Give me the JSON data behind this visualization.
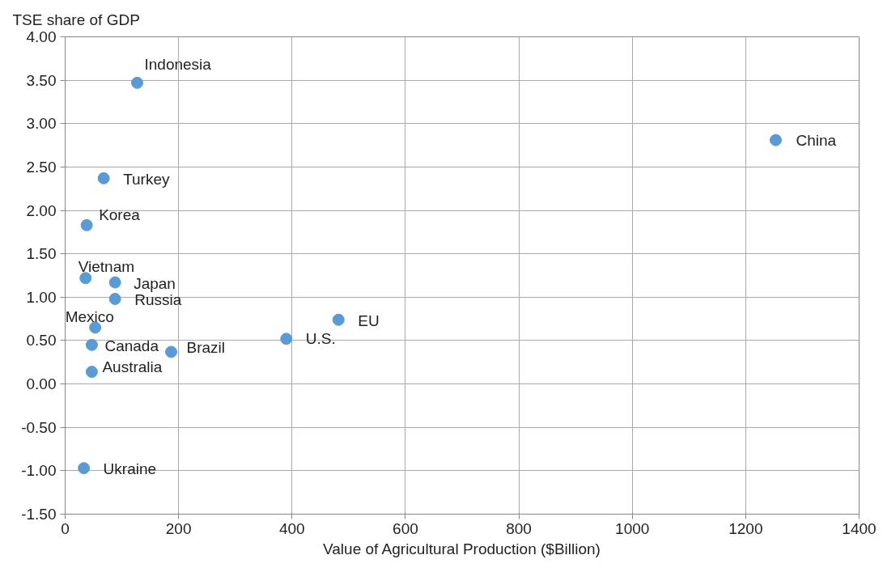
{
  "chart_data": {
    "type": "scatter",
    "xlabel": "Value of Agricultural Production ($Billion)",
    "ylabel": "TSE share of GDP",
    "series": [
      {
        "color": "#5b9bd5",
        "x": [
          127,
          1253,
          68,
          38,
          36,
          88,
          88,
          53,
          47,
          187,
          47,
          33,
          390,
          482
        ],
        "values": [
          3.47,
          2.81,
          2.37,
          1.83,
          1.22,
          1.17,
          0.98,
          0.65,
          0.45,
          0.37,
          0.14,
          -0.97,
          0.52,
          0.74
        ]
      }
    ],
    "annotations": [
      {
        "text": "Indonesia",
        "x": 127,
        "y": 3.47
      },
      {
        "text": "China",
        "x": 1253,
        "y": 2.81
      },
      {
        "text": "Turkey",
        "x": 68,
        "y": 2.37
      },
      {
        "text": "Korea",
        "x": 38,
        "y": 1.83
      },
      {
        "text": "Vietnam",
        "x": 36,
        "y": 1.22
      },
      {
        "text": "Japan",
        "x": 88,
        "y": 1.17
      },
      {
        "text": "Russia",
        "x": 88,
        "y": 0.98
      },
      {
        "text": "Mexico",
        "x": 53,
        "y": 0.65
      },
      {
        "text": "Canada",
        "x": 47,
        "y": 0.45
      },
      {
        "text": "Brazil",
        "x": 187,
        "y": 0.37
      },
      {
        "text": "Australia",
        "x": 47,
        "y": 0.14
      },
      {
        "text": "Ukraine",
        "x": 33,
        "y": -0.97
      },
      {
        "text": "U.S.",
        "x": 390,
        "y": 0.52
      },
      {
        "text": "EU",
        "x": 482,
        "y": 0.74
      }
    ],
    "xlim": [
      0,
      1400
    ],
    "xticks": [
      0,
      200,
      400,
      600,
      800,
      1000,
      1200,
      1400
    ],
    "ylim": [
      -1.5,
      4.0
    ],
    "yticks": [
      {
        "value": -1.5,
        "label": "-1.50"
      },
      {
        "value": -1.0,
        "label": "-1.00"
      },
      {
        "value": -0.5,
        "label": "-0.50"
      },
      {
        "value": 0,
        "label": "0.00"
      },
      {
        "value": 0.5,
        "label": "0.50"
      },
      {
        "value": 1.0,
        "label": "1.00"
      },
      {
        "value": 1.5,
        "label": "1.50"
      },
      {
        "value": 2.0,
        "label": "2.00"
      },
      {
        "value": 2.5,
        "label": "2.50"
      },
      {
        "value": 3.0,
        "label": "3.00"
      },
      {
        "value": 3.5,
        "label": "3.50"
      },
      {
        "value": 4.0,
        "label": "4.00"
      }
    ],
    "grid": true,
    "marker": "circle"
  }
}
